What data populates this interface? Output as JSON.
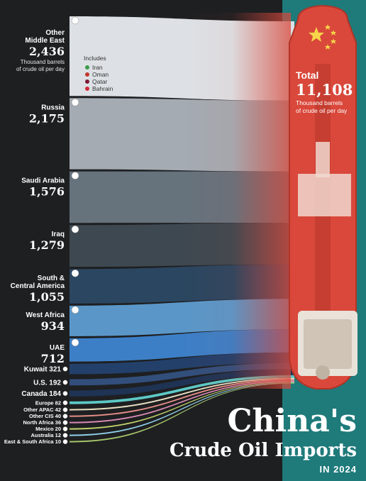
{
  "chart_data": {
    "type": "sankey",
    "title": "China's",
    "title_line2": "Crude Oil Imports",
    "subtitle": "IN 2024",
    "unit": "Thousand barrels of crude oil per day",
    "total": {
      "label": "Total",
      "value": "11,108",
      "unit_line1": "Thousand barrels",
      "unit_line2": "of crude oil per day"
    },
    "includes": {
      "heading": "Includes",
      "items": [
        "Iran",
        "Oman",
        "Qatar",
        "Bahrain"
      ]
    },
    "sources": [
      {
        "name": "Other Middle East",
        "display": "2,436",
        "value": 2436,
        "color": "#dde1e5"
      },
      {
        "name": "Russia",
        "display": "2,175",
        "value": 2175,
        "color": "#a4abb2"
      },
      {
        "name": "Saudi Arabia",
        "display": "1,576",
        "value": 1576,
        "color": "#66727c"
      },
      {
        "name": "Iraq",
        "display": "1,279",
        "value": 1279,
        "color": "#3e4850"
      },
      {
        "name": "South & Central America",
        "display": "1,055",
        "value": 1055,
        "color": "#2b4660"
      },
      {
        "name": "West Africa",
        "display": "934",
        "value": 934,
        "color": "#5a97c8"
      },
      {
        "name": "UAE",
        "display": "712",
        "value": 712,
        "color": "#3d7fc6"
      },
      {
        "name": "Kuwait",
        "display": "321",
        "value": 321,
        "color": "#23406a"
      },
      {
        "name": "U.S.",
        "display": "192",
        "value": 192,
        "color": "#324f7c"
      },
      {
        "name": "Canada",
        "display": "184",
        "value": 184,
        "color": "#1f3354"
      },
      {
        "name": "Europe",
        "display": "82",
        "value": 82,
        "color": "#5dc9c6"
      },
      {
        "name": "Other APAC",
        "display": "42",
        "value": 42,
        "color": "#e8e0c2"
      },
      {
        "name": "Other CIS",
        "display": "40",
        "value": 40,
        "color": "#e58f87"
      },
      {
        "name": "North Africa",
        "display": "36",
        "value": 36,
        "color": "#d98ab3"
      },
      {
        "name": "Mexico",
        "display": "20",
        "value": 20,
        "color": "#c1d36a"
      },
      {
        "name": "Australia",
        "display": "12",
        "value": 12,
        "color": "#8ed1e8"
      },
      {
        "name": "East & South Africa",
        "display": "10",
        "value": 10,
        "color": "#a7c66b"
      }
    ]
  },
  "colors": {
    "background": "#1e1f21",
    "ship_hull": "#d9483b",
    "teal_panel": "#1f7a7a",
    "flag_star": "#f7d54a"
  }
}
